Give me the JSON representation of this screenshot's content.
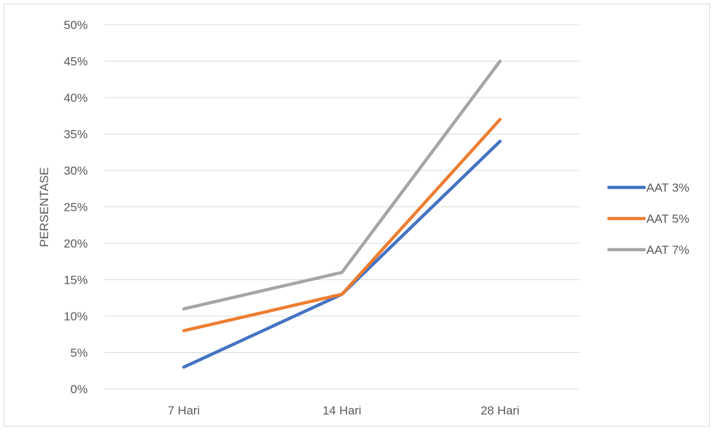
{
  "chart_data": {
    "type": "line",
    "title": "",
    "xlabel": "",
    "ylabel": "PERSENTASE",
    "categories": [
      "7 Hari",
      "14 Hari",
      "28 Hari"
    ],
    "ylim": [
      0,
      0.5
    ],
    "ytick_step": 0.05,
    "ytick_labels": [
      "0%",
      "5%",
      "10%",
      "15%",
      "20%",
      "25%",
      "30%",
      "35%",
      "40%",
      "45%",
      "50%"
    ],
    "grid": "horizontal",
    "legend_position": "right",
    "series": [
      {
        "name": "AAT 3%",
        "color": "#4472c4",
        "values": [
          0.03,
          0.13,
          0.34
        ]
      },
      {
        "name": "AAT 5%",
        "color": "#ed7d31",
        "values": [
          0.08,
          0.13,
          0.37
        ]
      },
      {
        "name": "AAT 7%",
        "color": "#a5a5a5",
        "values": [
          0.11,
          0.16,
          0.45
        ]
      }
    ]
  }
}
